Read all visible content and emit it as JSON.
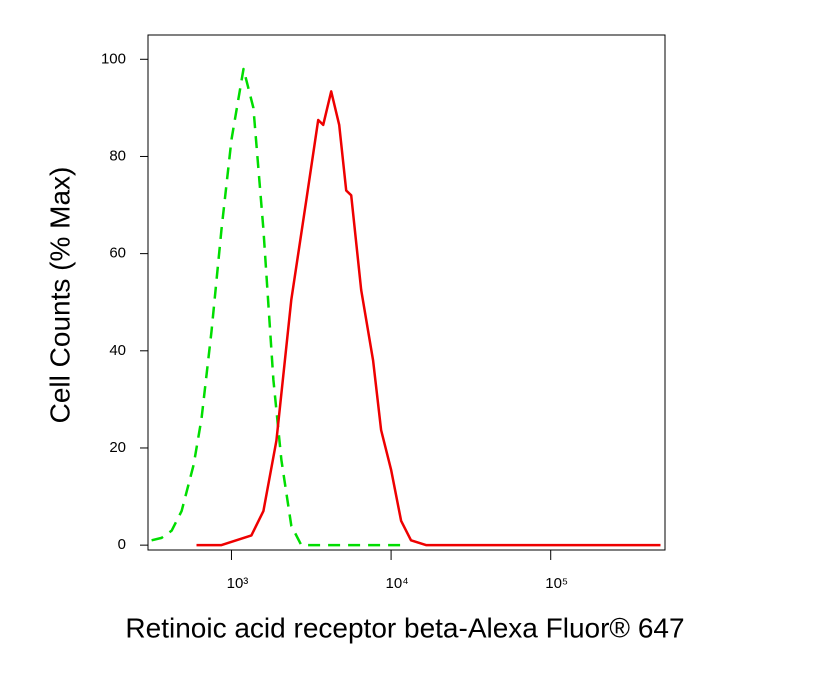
{
  "chart_data": {
    "type": "line",
    "x_scale": "log",
    "x_label": "Retinoic acid receptor beta-Alexa Fluor® 647",
    "y_label": "Cell Counts (% Max)",
    "xlim": [
      300,
      520000
    ],
    "xticks": [
      {
        "value": 1000,
        "label": "10³"
      },
      {
        "value": 10000,
        "label": "10⁴"
      },
      {
        "value": 100000,
        "label": "10⁵"
      }
    ],
    "ylim": [
      -1,
      105
    ],
    "yticks": [
      0,
      20,
      40,
      60,
      80,
      100
    ],
    "series": [
      {
        "color": "#00dd00",
        "dashed": true,
        "x": [
          316,
          365,
          422,
          487,
          579,
          649,
          750,
          866,
          1000,
          1189,
          1372,
          1585,
          1830,
          2054,
          2371,
          2738,
          3652,
          11548
        ],
        "values": [
          1,
          1.5,
          3,
          7,
          16.5,
          26,
          44,
          65,
          83.5,
          98,
          90,
          65,
          34,
          17.5,
          4,
          0,
          0,
          0
        ]
      },
      {
        "color": "#ee0000",
        "dashed": false,
        "x": [
          604,
          866,
          1334,
          1585,
          1911,
          2371,
          2943,
          3497,
          3758,
          4217,
          4732,
          5233,
          5623,
          6494,
          7718,
          8660,
          10000,
          11548,
          13335,
          16548,
          487000
        ],
        "values": [
          0,
          0,
          2,
          7,
          21.5,
          50.5,
          71,
          87.5,
          86.5,
          93.4,
          86.5,
          73,
          72,
          52.5,
          38,
          23.7,
          15.5,
          5,
          1,
          0,
          0
        ]
      }
    ]
  }
}
